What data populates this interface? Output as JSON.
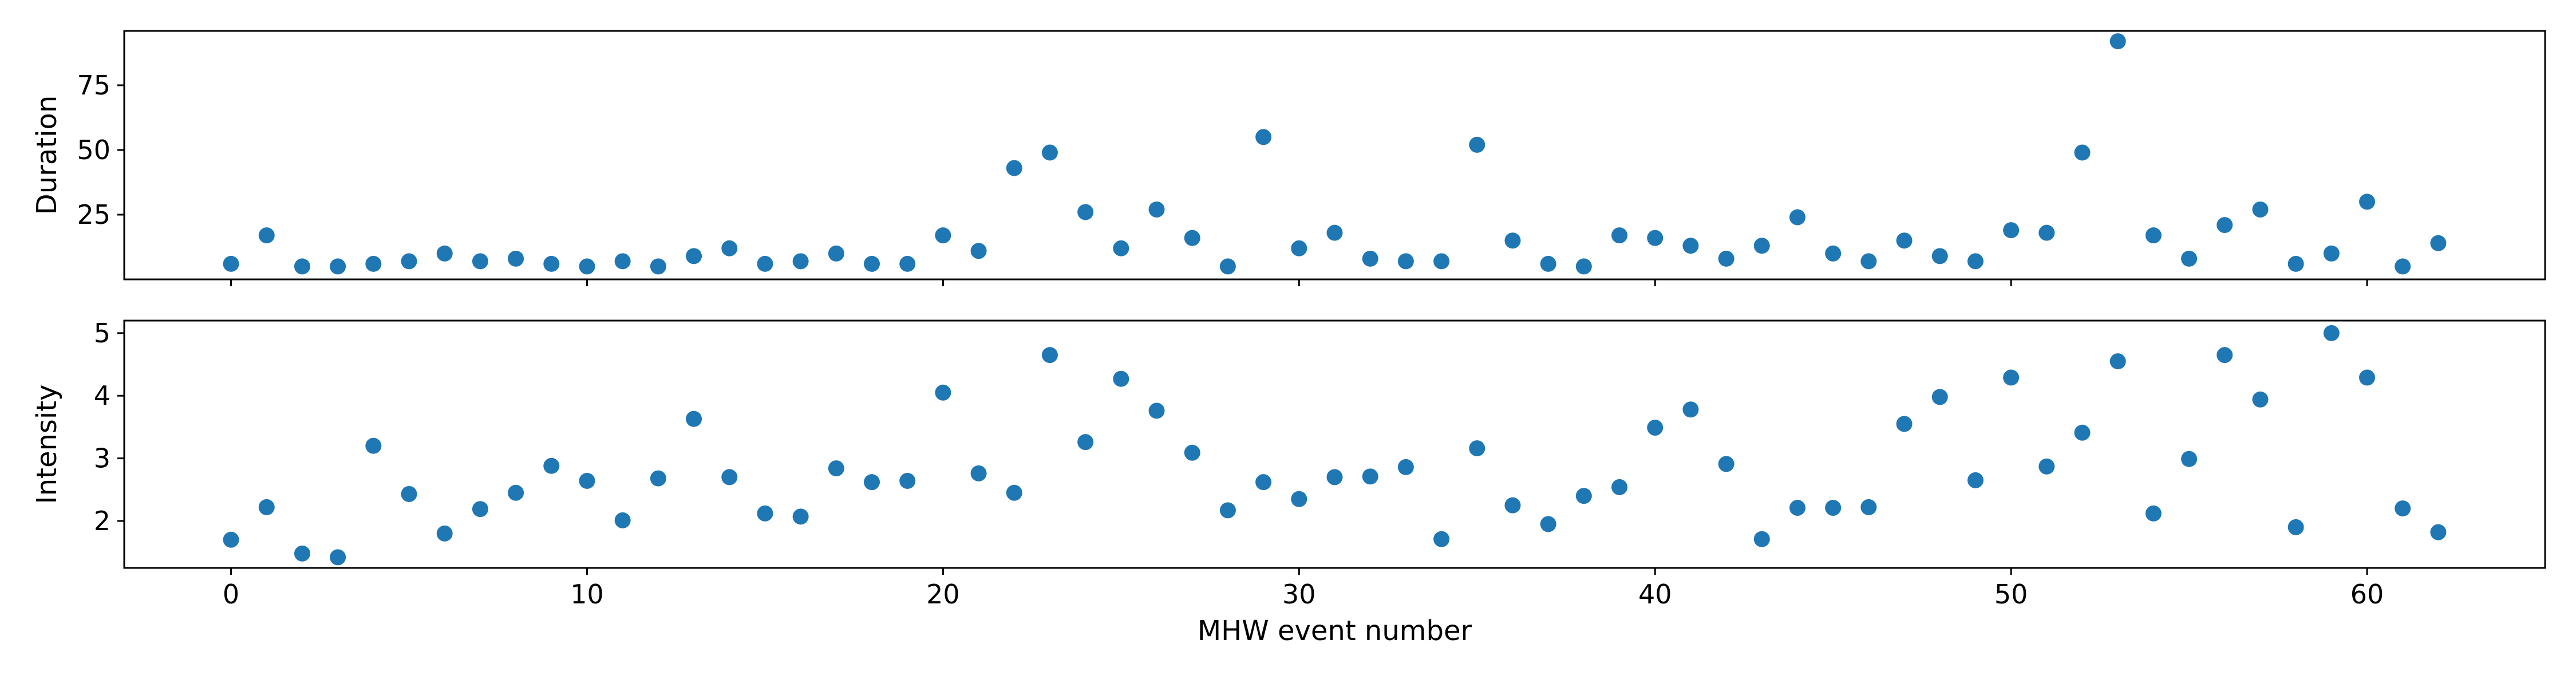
{
  "chart_data": [
    {
      "type": "scatter",
      "panel": "top",
      "xlabel": "",
      "ylabel": "Duration",
      "xlim": [
        -3,
        65
      ],
      "ylim": [
        0,
        96
      ],
      "xticks": [
        0,
        10,
        20,
        30,
        40,
        50,
        60
      ],
      "yticks": [
        25,
        50,
        75
      ],
      "x_tick_labels_visible": false,
      "grid": false,
      "marker_color": "#1f77b4",
      "series": [
        {
          "x": [
            0,
            1,
            2,
            3,
            4,
            5,
            6,
            7,
            8,
            9,
            10,
            11,
            12,
            13,
            14,
            15,
            16,
            17,
            18,
            19,
            20,
            21,
            22,
            23,
            24,
            25,
            26,
            27,
            28,
            29,
            30,
            31,
            32,
            33,
            34,
            35,
            36,
            37,
            38,
            39,
            40,
            41,
            42,
            43,
            44,
            45,
            46,
            47,
            48,
            49,
            50,
            51,
            52,
            53,
            54,
            55,
            56,
            57,
            58,
            59,
            60,
            61,
            62
          ],
          "y": [
            6,
            17,
            5,
            5,
            6,
            7,
            10,
            7,
            8,
            6,
            5,
            7,
            5,
            9,
            12,
            6,
            7,
            10,
            6,
            6,
            17,
            11,
            43,
            49,
            26,
            12,
            27,
            16,
            5,
            55,
            12,
            18,
            8,
            7,
            7,
            52,
            15,
            6,
            5,
            17,
            16,
            13,
            8,
            13,
            24,
            10,
            7,
            15,
            9,
            7,
            19,
            18,
            49,
            92,
            17,
            8,
            21,
            27,
            6,
            10,
            30,
            5,
            14
          ]
        }
      ]
    },
    {
      "type": "scatter",
      "panel": "bottom",
      "xlabel": "MHW event number",
      "ylabel": "Intensity",
      "xlim": [
        -3,
        65
      ],
      "ylim": [
        1.25,
        5.2
      ],
      "xticks": [
        0,
        10,
        20,
        30,
        40,
        50,
        60
      ],
      "yticks": [
        2,
        3,
        4,
        5
      ],
      "grid": false,
      "marker_color": "#1f77b4",
      "series": [
        {
          "x": [
            0,
            1,
            2,
            3,
            4,
            5,
            6,
            7,
            8,
            9,
            10,
            11,
            12,
            13,
            14,
            15,
            16,
            17,
            18,
            19,
            20,
            21,
            22,
            23,
            24,
            25,
            26,
            27,
            28,
            29,
            30,
            31,
            32,
            33,
            34,
            35,
            36,
            37,
            38,
            39,
            40,
            41,
            42,
            43,
            44,
            45,
            46,
            47,
            48,
            49,
            50,
            51,
            52,
            53,
            54,
            55,
            56,
            57,
            58,
            59,
            60,
            61,
            62
          ],
          "y": [
            1.7,
            2.22,
            1.48,
            1.42,
            3.2,
            2.43,
            1.8,
            2.19,
            2.45,
            2.88,
            2.64,
            2.01,
            2.68,
            3.63,
            2.7,
            2.12,
            2.07,
            2.84,
            2.62,
            2.64,
            4.05,
            2.76,
            2.45,
            4.65,
            3.26,
            4.27,
            3.76,
            3.09,
            2.17,
            2.62,
            2.35,
            2.7,
            2.71,
            2.86,
            1.71,
            3.16,
            2.25,
            1.95,
            2.4,
            2.54,
            3.49,
            3.78,
            2.91,
            1.71,
            2.21,
            2.21,
            2.22,
            3.55,
            3.98,
            2.65,
            4.29,
            2.87,
            3.41,
            4.55,
            2.12,
            2.99,
            4.65,
            3.94,
            1.9,
            5.0,
            4.29,
            2.2,
            1.82
          ]
        }
      ]
    }
  ]
}
